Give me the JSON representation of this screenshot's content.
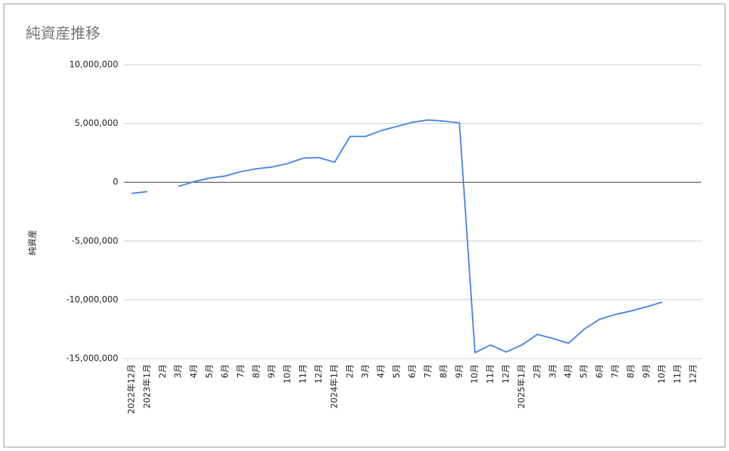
{
  "chart_data": {
    "type": "line",
    "title": "純資産推移",
    "y_label": "純資産",
    "categories": [
      "2022年12月",
      "2023年1月",
      "2月",
      "3月",
      "4月",
      "5月",
      "6月",
      "7月",
      "8月",
      "9月",
      "10月",
      "11月",
      "12月",
      "2024年1月",
      "2月",
      "3月",
      "4月",
      "5月",
      "6月",
      "7月",
      "8月",
      "9月",
      "10月",
      "11月",
      "12月",
      "2025年1月",
      "2月",
      "3月",
      "4月",
      "5月",
      "6月",
      "7月",
      "8月",
      "9月",
      "10月",
      "11月",
      "12月"
    ],
    "series": [
      {
        "name": "純資産",
        "color": "#4a86e8",
        "values": [
          -950000,
          -800000,
          null,
          -350000,
          50000,
          350000,
          530000,
          900000,
          1150000,
          1300000,
          1600000,
          2050000,
          2100000,
          1700000,
          3900000,
          3900000,
          4400000,
          4750000,
          5100000,
          5300000,
          5200000,
          5050000,
          -14500000,
          -13850000,
          -14450000,
          -13850000,
          -12950000,
          -13300000,
          -13700000,
          -12500000,
          -11650000,
          -11250000,
          -10950000,
          -10600000,
          -10200000,
          null,
          null
        ]
      }
    ],
    "ylim": [
      -15000000,
      10000000
    ],
    "yticks": [
      {
        "value": -15000000,
        "label": "-15,000,000"
      },
      {
        "value": -10000000,
        "label": "-10,000,000"
      },
      {
        "value": -5000000,
        "label": "-5,000,000"
      },
      0,
      {
        "value": 5000000,
        "label": "5,000,000"
      },
      {
        "value": 10000000,
        "label": "10,000,000"
      }
    ],
    "grid": true
  }
}
